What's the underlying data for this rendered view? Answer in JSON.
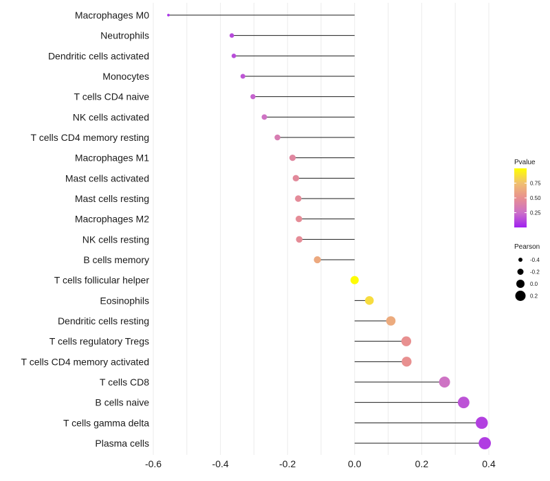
{
  "chart_data": {
    "type": "lollipop",
    "title": "",
    "xlabel": "",
    "ylabel": "",
    "xlim": [
      -0.6,
      0.4
    ],
    "xticks": [
      -0.6,
      -0.4,
      -0.2,
      0.0,
      0.2,
      0.4
    ],
    "xtick_labels": [
      "-0.6",
      "-0.4",
      "-0.2",
      "0.0",
      "0.2",
      "0.4"
    ],
    "grid": "vertical",
    "baseline": 0.0,
    "points": [
      {
        "label": "Macrophages M0",
        "pearson": -0.555,
        "pvalue": 0.05
      },
      {
        "label": "Neutrophils",
        "pearson": -0.366,
        "pvalue": 0.13
      },
      {
        "label": "Dendritic cells activated",
        "pearson": -0.36,
        "pvalue": 0.14
      },
      {
        "label": "Monocytes",
        "pearson": -0.333,
        "pvalue": 0.17
      },
      {
        "label": "T cells CD4 naive",
        "pearson": -0.303,
        "pvalue": 0.21
      },
      {
        "label": "NK cells activated",
        "pearson": -0.269,
        "pvalue": 0.27
      },
      {
        "label": "T cells CD4 memory resting",
        "pearson": -0.23,
        "pvalue": 0.35
      },
      {
        "label": "Macrophages M1",
        "pearson": -0.185,
        "pvalue": 0.43
      },
      {
        "label": "Mast cells activated",
        "pearson": -0.175,
        "pvalue": 0.45
      },
      {
        "label": "Mast cells resting",
        "pearson": -0.168,
        "pvalue": 0.46
      },
      {
        "label": "Macrophages M2",
        "pearson": -0.166,
        "pvalue": 0.47
      },
      {
        "label": "NK cells resting",
        "pearson": -0.165,
        "pvalue": 0.47
      },
      {
        "label": "B cells memory",
        "pearson": -0.111,
        "pvalue": 0.63
      },
      {
        "label": "T cells follicular helper",
        "pearson": 0.0,
        "pvalue": 0.99
      },
      {
        "label": "Eosinophils",
        "pearson": 0.044,
        "pvalue": 0.86
      },
      {
        "label": "Dendritic cells resting",
        "pearson": 0.108,
        "pvalue": 0.64
      },
      {
        "label": "T cells regulatory  Tregs ",
        "pearson": 0.154,
        "pvalue": 0.5
      },
      {
        "label": "T cells CD4 memory activated",
        "pearson": 0.155,
        "pvalue": 0.5
      },
      {
        "label": "T cells CD8",
        "pearson": 0.268,
        "pvalue": 0.27
      },
      {
        "label": "B cells naive",
        "pearson": 0.325,
        "pvalue": 0.16
      },
      {
        "label": "T cells gamma delta",
        "pearson": 0.379,
        "pvalue": 0.1
      },
      {
        "label": "Plasma cells",
        "pearson": 0.388,
        "pvalue": 0.09
      }
    ],
    "legend": {
      "placement": "right",
      "color": {
        "title": "Pvalue",
        "breaks": [
          0.25,
          0.5,
          0.75
        ],
        "labels": [
          "0.25",
          "0.50",
          "0.75"
        ],
        "range": [
          0.0,
          1.0
        ],
        "colors": [
          "#a020f0",
          "#cc70c8",
          "#e89090",
          "#f0c070",
          "#ffff00"
        ]
      },
      "size": {
        "title": "Pearson",
        "breaks": [
          -0.4,
          -0.2,
          0.0,
          0.2
        ],
        "labels": [
          "-0.4",
          "-0.2",
          "0.0",
          "0.2"
        ]
      }
    }
  }
}
